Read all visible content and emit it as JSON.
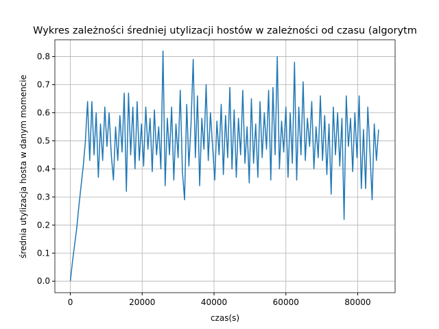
{
  "chart_data": {
    "type": "line",
    "title": "Wykres zależności średniej utylizacji hostów w zależności od czasu (algorytm",
    "xlabel": "czas(s)",
    "ylabel": "średnia utylizacja hosta w danym momencie",
    "xlim": [
      -4300,
      90400
    ],
    "ylim": [
      -0.041,
      0.86
    ],
    "xticks": [
      0,
      20000,
      40000,
      60000,
      80000
    ],
    "yticks": [
      {
        "value": 0,
        "label": "0.0"
      },
      0.1,
      0.2,
      0.3,
      0.4,
      0.5,
      0.6,
      0.7,
      0.8
    ],
    "grid": true,
    "series": [
      {
        "color": "#1f77b4",
        "x": [
          0,
          600,
          1200,
          1800,
          2400,
          3000,
          3600,
          4200,
          4800,
          5400,
          6000,
          6600,
          7200,
          7800,
          8400,
          9000,
          9600,
          10200,
          10800,
          11400,
          12000,
          12600,
          13200,
          13800,
          14400,
          15000,
          15600,
          16200,
          16800,
          17400,
          18000,
          18600,
          19200,
          19800,
          20400,
          21000,
          21600,
          22200,
          22800,
          23400,
          24000,
          24600,
          25200,
          25800,
          26400,
          27000,
          27600,
          28200,
          28800,
          29400,
          30000,
          30600,
          31200,
          31800,
          32400,
          33000,
          33600,
          34200,
          34800,
          35400,
          36000,
          36600,
          37200,
          37800,
          38400,
          39000,
          39600,
          40200,
          40800,
          41400,
          42000,
          42600,
          43200,
          43800,
          44400,
          45000,
          45600,
          46200,
          46800,
          47400,
          48000,
          48600,
          49200,
          49800,
          50400,
          51000,
          51600,
          52200,
          52800,
          53400,
          54000,
          54600,
          55200,
          55800,
          56400,
          57000,
          57600,
          58200,
          58800,
          59400,
          60000,
          60600,
          61200,
          61800,
          62400,
          63000,
          63600,
          64200,
          64800,
          65400,
          66000,
          66600,
          67200,
          67800,
          68400,
          69000,
          69600,
          70200,
          70800,
          71400,
          72000,
          72600,
          73200,
          73800,
          74400,
          75000,
          75600,
          76200,
          76800,
          77400,
          78000,
          78600,
          79200,
          79800,
          80400,
          81000,
          81600,
          82200,
          82800,
          83400,
          84000,
          84600,
          85200,
          85800
        ],
        "values": [
          0,
          0.07,
          0.13,
          0.19,
          0.27,
          0.34,
          0.41,
          0.5,
          0.64,
          0.43,
          0.64,
          0.45,
          0.6,
          0.37,
          0.56,
          0.43,
          0.62,
          0.48,
          0.6,
          0.45,
          0.36,
          0.55,
          0.43,
          0.59,
          0.46,
          0.67,
          0.32,
          0.67,
          0.45,
          0.62,
          0.4,
          0.64,
          0.43,
          0.56,
          0.41,
          0.62,
          0.47,
          0.58,
          0.39,
          0.61,
          0.45,
          0.55,
          0.4,
          0.82,
          0.34,
          0.58,
          0.45,
          0.62,
          0.36,
          0.56,
          0.44,
          0.68,
          0.39,
          0.29,
          0.63,
          0.41,
          0.56,
          0.79,
          0.44,
          0.66,
          0.34,
          0.58,
          0.47,
          0.7,
          0.43,
          0.6,
          0.48,
          0.36,
          0.57,
          0.45,
          0.63,
          0.38,
          0.59,
          0.44,
          0.69,
          0.4,
          0.61,
          0.37,
          0.58,
          0.45,
          0.68,
          0.42,
          0.55,
          0.35,
          0.65,
          0.42,
          0.56,
          0.37,
          0.64,
          0.44,
          0.6,
          0.47,
          0.68,
          0.36,
          0.69,
          0.45,
          0.8,
          0.4,
          0.57,
          0.46,
          0.62,
          0.37,
          0.6,
          0.42,
          0.78,
          0.36,
          0.62,
          0.45,
          0.71,
          0.43,
          0.58,
          0.48,
          0.64,
          0.4,
          0.55,
          0.44,
          0.66,
          0.43,
          0.59,
          0.38,
          0.56,
          0.31,
          0.62,
          0.45,
          0.6,
          0.41,
          0.58,
          0.22,
          0.66,
          0.48,
          0.58,
          0.39,
          0.6,
          0.44,
          0.66,
          0.33,
          0.54,
          0.33,
          0.62,
          0.46,
          0.29,
          0.56,
          0.43,
          0.54
        ]
      }
    ]
  }
}
